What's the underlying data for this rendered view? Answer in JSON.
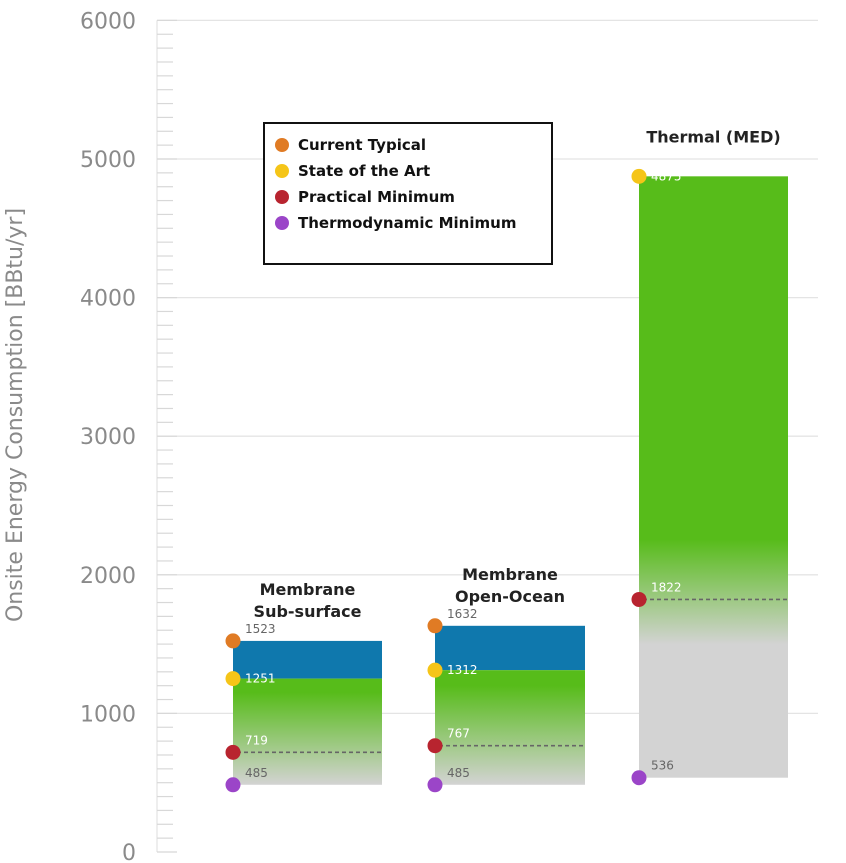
{
  "chart_data": {
    "type": "bar",
    "ylabel": "Onsite Energy Consumption [BBtu/yr]",
    "ylim": [
      0,
      6000
    ],
    "yticks": [
      0,
      1000,
      2000,
      3000,
      4000,
      5000,
      6000
    ],
    "grid": true,
    "legend_position": "top-left",
    "legend": [
      {
        "name": "Current Typical",
        "color": "#e07b24"
      },
      {
        "name": "State of the Art",
        "color": "#f5c518"
      },
      {
        "name": "Practical Minimum",
        "color": "#b8242f"
      },
      {
        "name": "Thermodynamic Minimum",
        "color": "#9b45c8"
      }
    ],
    "colors": {
      "current_to_sota": "#0f78ad",
      "sota_to_practical": "#57bc1a",
      "below_practical": "#d3d3d3"
    },
    "categories": [
      {
        "label_lines": [
          "Membrane",
          "Sub-surface"
        ],
        "current_typical": 1523,
        "state_of_the_art": 1251,
        "practical_minimum": 719,
        "thermodynamic_minimum": 485
      },
      {
        "label_lines": [
          "Membrane",
          "Open-Ocean"
        ],
        "current_typical": 1632,
        "state_of_the_art": 1312,
        "practical_minimum": 767,
        "thermodynamic_minimum": 485
      },
      {
        "label_lines": [
          "Thermal (MED)"
        ],
        "current_typical": null,
        "state_of_the_art": 4875,
        "practical_minimum": 1822,
        "thermodynamic_minimum": 536
      }
    ]
  }
}
